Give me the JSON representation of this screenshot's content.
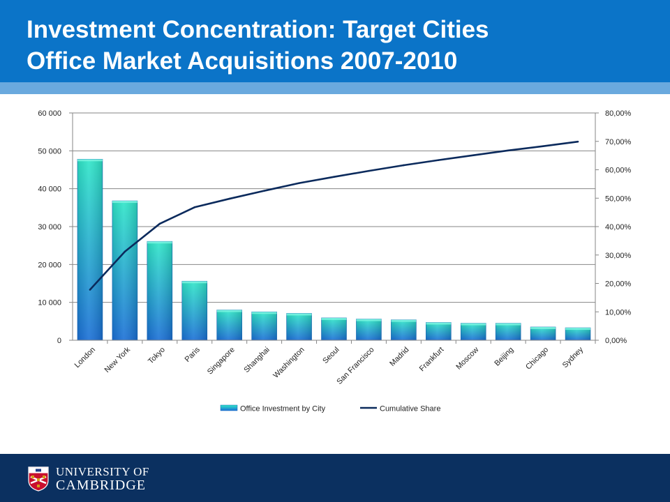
{
  "slide": {
    "title_line1": "Investment Concentration: Target Cities",
    "title_line2": "Office Market Acquisitions 2007-2010"
  },
  "footer": {
    "university_line1": "UNIVERSITY OF",
    "university_line2": "CAMBRIDGE"
  },
  "colors": {
    "title_bar": "#0b74c8",
    "title_strip": "#6aa9de",
    "footer": "#0b3060",
    "bar_top": "#2ee6c8",
    "bar_bottom": "#1a6fd6",
    "line": "#0b2a5c"
  },
  "chart_data": {
    "type": "bar",
    "categories": [
      "London",
      "New York",
      "Tokyo",
      "Paris",
      "Singapore",
      "Shanghai",
      "Washington",
      "Seoul",
      "San Francisco",
      "Madrid",
      "Frankfurt",
      "Moscow",
      "Beijing",
      "Chicago",
      "Sydney"
    ],
    "series": [
      {
        "name": "Office Investment by City",
        "type": "bar",
        "axis": "left",
        "values": [
          47800,
          36800,
          26100,
          15600,
          8000,
          7500,
          7100,
          5900,
          5600,
          5400,
          4700,
          4500,
          4500,
          3500,
          3300
        ]
      },
      {
        "name": "Cumulative Share",
        "type": "line",
        "axis": "right",
        "values": [
          17.8,
          31.2,
          41.0,
          46.8,
          49.8,
          52.6,
          55.3,
          57.5,
          59.6,
          61.6,
          63.4,
          65.1,
          66.8,
          68.3,
          69.9
        ]
      }
    ],
    "y_left": {
      "range": [
        0,
        60000
      ],
      "ticks": [
        0,
        10000,
        20000,
        30000,
        40000,
        50000,
        60000
      ],
      "tick_labels": [
        "0",
        "10 000",
        "20 000",
        "30 000",
        "40 000",
        "50 000",
        "60 000"
      ]
    },
    "y_right": {
      "range": [
        0,
        80
      ],
      "ticks": [
        0,
        10,
        20,
        30,
        40,
        50,
        60,
        70,
        80
      ],
      "tick_labels": [
        "0,00%",
        "10,00%",
        "20,00%",
        "30,00%",
        "40,00%",
        "50,00%",
        "60,00%",
        "70,00%",
        "80,00%"
      ]
    },
    "grid": true,
    "legend_position": "bottom"
  }
}
